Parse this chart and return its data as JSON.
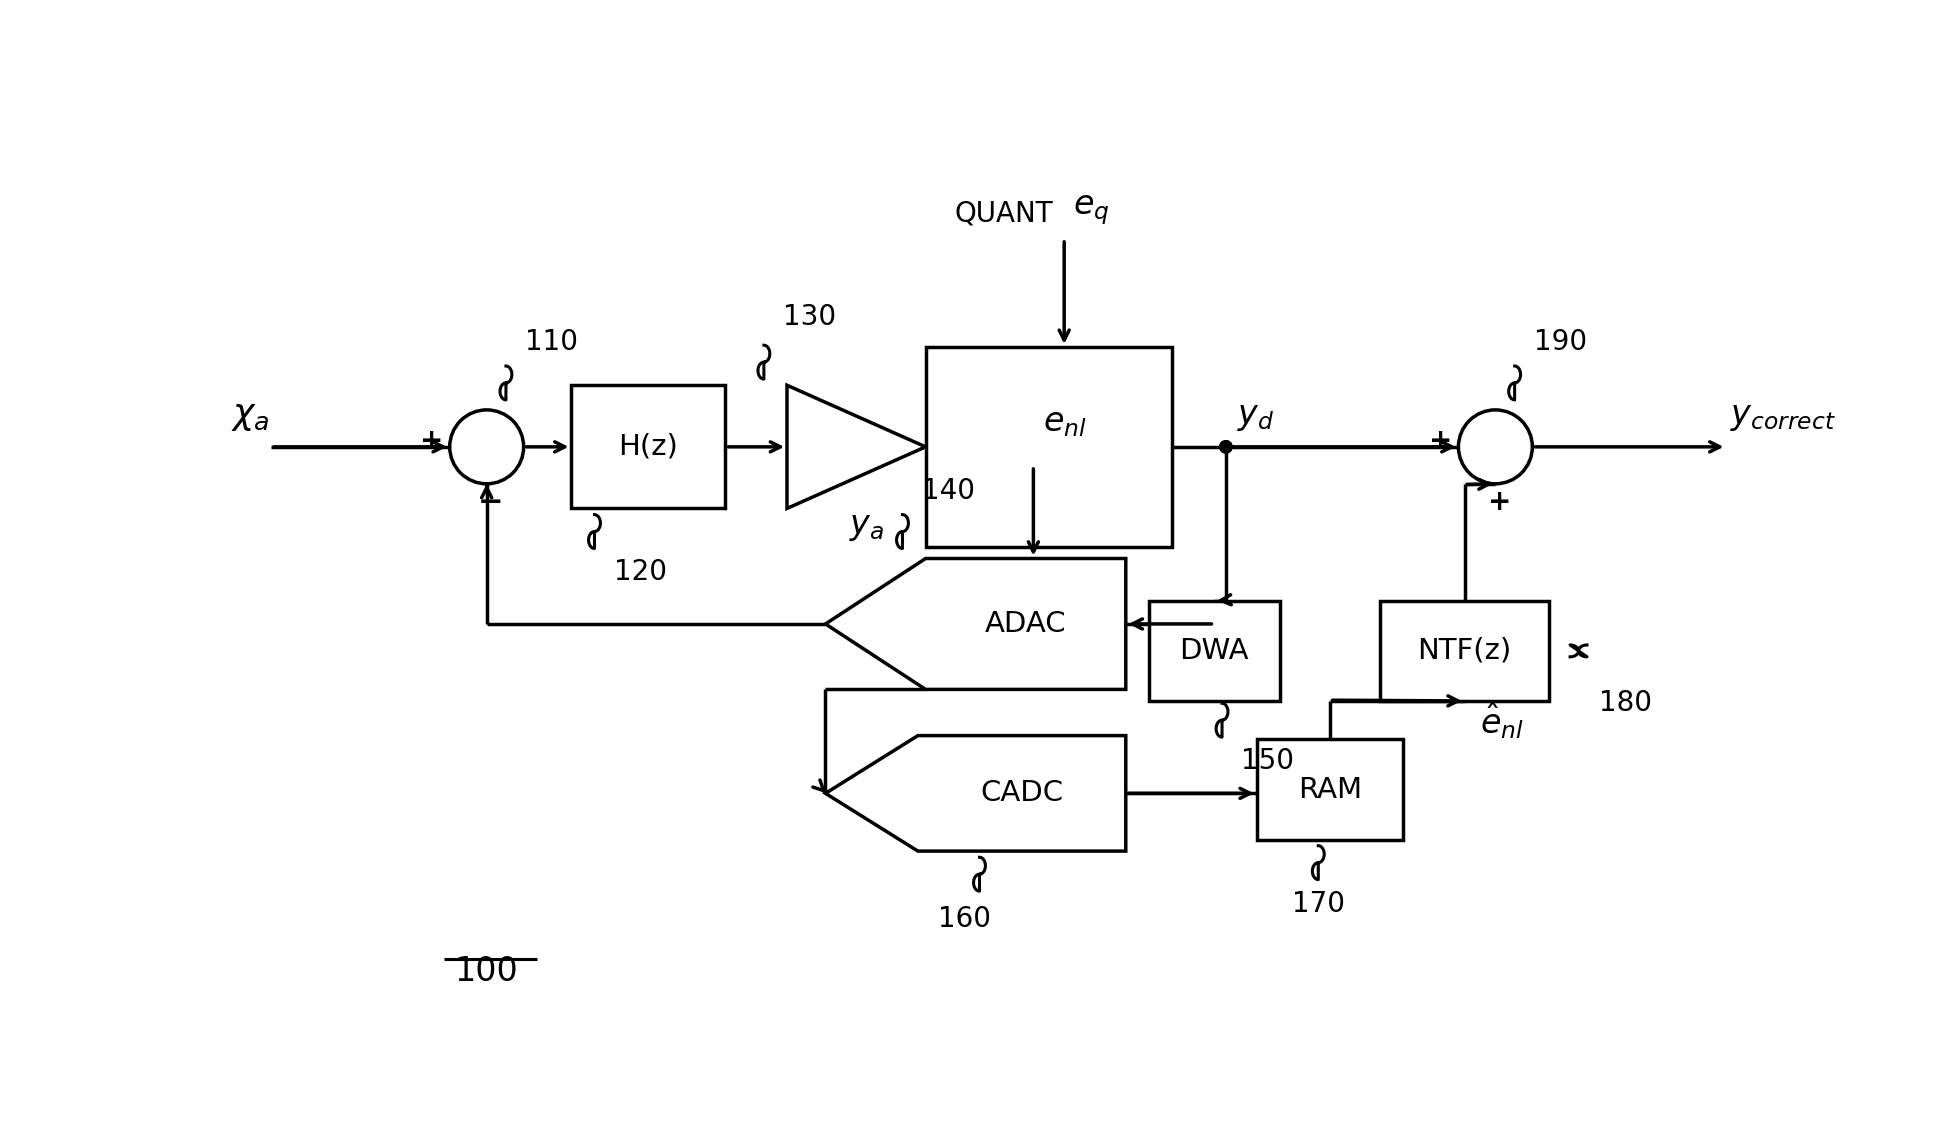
{
  "bg_color": "#ffffff",
  "line_color": "#000000",
  "label_100": "100",
  "label_110": "110",
  "label_120": "120",
  "label_130": "130",
  "label_140": "140",
  "label_150": "150",
  "label_160": "160",
  "label_170": "170",
  "label_180": "180",
  "label_190": "190",
  "block_hz": "H(z)",
  "block_dwa": "DWA",
  "block_ntfz": "NTF(z)",
  "block_adac": "ADAC",
  "block_cadc": "CADC",
  "block_ram": "RAM",
  "signal_xa": "$\\chi_a$",
  "signal_yd": "$y_d$",
  "signal_ycorrect": "$y_{correct}$",
  "signal_eq": "$e_q$",
  "signal_enl": "$e_{nl}$",
  "signal_enl_hat": "$\\hat{e}_{nl}$",
  "signal_ya": "$y_a$",
  "signal_quant": "QUANT"
}
